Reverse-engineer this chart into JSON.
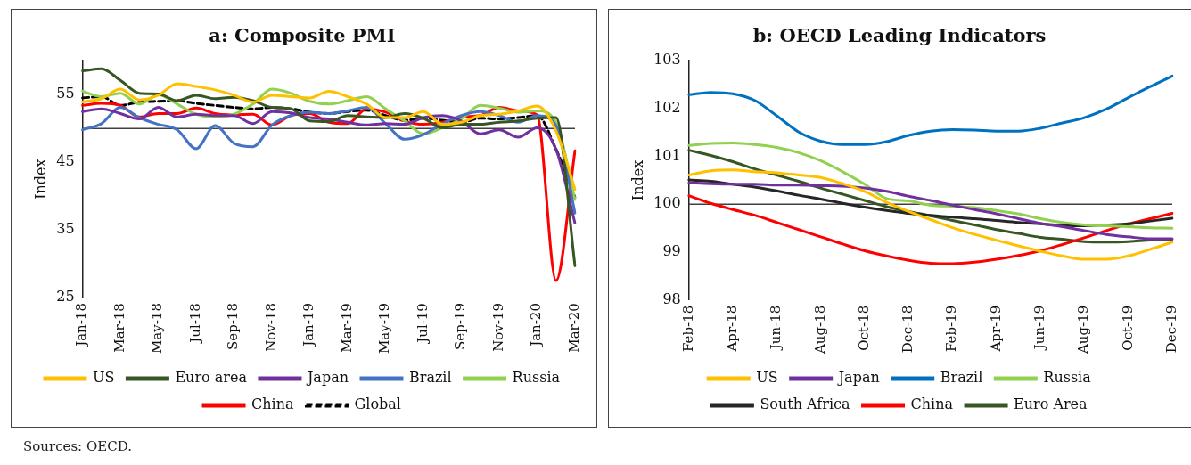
{
  "chart_data": [
    {
      "type": "line",
      "title": "a: Composite PMI",
      "ylabel": "Index",
      "categories": [
        "Jan-18",
        null,
        "Mar-18",
        null,
        "May-18",
        null,
        "Jul-18",
        null,
        "Sep-18",
        null,
        "Nov-18",
        null,
        "Jan-19",
        null,
        "Mar-19",
        null,
        "May-19",
        null,
        "Jul-19",
        null,
        "Sep-19",
        null,
        "Nov-19",
        null,
        "Jan-20",
        null,
        "Mar-20"
      ],
      "ylim": [
        25,
        60
      ],
      "yticks": [
        25,
        35,
        45,
        55
      ],
      "grid": false,
      "legend": "bottom",
      "marker": "none",
      "ref_lines": [
        {
          "axis": "y",
          "value": 50,
          "color": "#404040"
        }
      ],
      "series": [
        {
          "name": "US",
          "color": "#ffc000",
          "values": [
            53.9,
            54.4,
            55.8,
            54.2,
            54.9,
            56.6,
            56.2,
            55.7,
            54.9,
            53.9,
            54.9,
            54.7,
            54.5,
            55.5,
            54.7,
            53.6,
            51.6,
            51.6,
            52.5,
            50.6,
            50.9,
            51.9,
            52.1,
            52.6,
            53.3,
            49.6,
            41.0
          ]
        },
        {
          "name": "Euro area",
          "color": "#375623",
          "values": [
            58.5,
            58.8,
            57.1,
            55.2,
            55.1,
            54.1,
            54.9,
            54.4,
            54.6,
            54.1,
            53.1,
            52.9,
            51.1,
            51.0,
            51.9,
            51.7,
            51.6,
            52.2,
            51.5,
            50.1,
            50.6,
            50.6,
            50.9,
            51.1,
            51.5,
            51.6,
            29.7
          ]
        },
        {
          "name": "Japan",
          "color": "#7030a0",
          "values": [
            52.5,
            52.9,
            52.2,
            51.4,
            53.1,
            51.7,
            52.1,
            51.9,
            51.9,
            50.7,
            52.5,
            52.3,
            51.6,
            51.4,
            50.9,
            50.5,
            50.7,
            50.6,
            51.6,
            51.9,
            51.1,
            49.2,
            49.8,
            48.7,
            50.1,
            46.9,
            36.0
          ]
        },
        {
          "name": "Brazil",
          "color": "#4472c4",
          "values": [
            49.8,
            50.7,
            53.1,
            51.6,
            50.6,
            49.8,
            47.0,
            50.4,
            47.8,
            47.3,
            50.5,
            51.9,
            52.4,
            52.2,
            52.6,
            53.1,
            50.7,
            48.4,
            49.1,
            50.7,
            51.9,
            52.5,
            51.9,
            50.9,
            51.9,
            50.4,
            37.5
          ]
        },
        {
          "name": "Russia",
          "color": "#92d050",
          "values": [
            55.5,
            54.7,
            55.2,
            53.6,
            55.0,
            53.6,
            52.1,
            51.7,
            52.1,
            53.6,
            55.8,
            55.2,
            54.0,
            53.6,
            54.1,
            54.7,
            52.9,
            51.1,
            49.2,
            50.1,
            51.4,
            53.4,
            53.0,
            52.4,
            52.6,
            50.9,
            39.5
          ]
        },
        {
          "name": "China",
          "color": "#ff0000",
          "values": [
            53.4,
            53.7,
            53.4,
            51.7,
            52.2,
            52.2,
            53.0,
            52.2,
            52.0,
            52.1,
            50.5,
            51.9,
            52.2,
            50.9,
            50.7,
            52.9,
            52.4,
            51.1,
            50.6,
            50.9,
            51.7,
            51.9,
            53.1,
            52.6,
            52.0,
            27.5,
            46.7
          ]
        },
        {
          "name": "Global",
          "color": "#000000",
          "line_style": "dashed",
          "values": [
            54.5,
            54.7,
            53.4,
            53.9,
            54.0,
            54.1,
            53.7,
            53.4,
            53.1,
            52.9,
            53.1,
            52.9,
            52.4,
            52.2,
            52.5,
            52.7,
            51.9,
            51.2,
            51.5,
            51.2,
            50.9,
            51.5,
            51.4,
            51.6,
            51.9,
            46.9,
            39.8
          ]
        }
      ],
      "annotations": [
        "Sources: OECD."
      ]
    },
    {
      "type": "line",
      "title": "b: OECD Leading Indicators",
      "ylabel": "Index",
      "categories": [
        "Feb-18",
        null,
        "Apr-18",
        null,
        "Jun-18",
        null,
        "Aug-18",
        null,
        "Oct-18",
        null,
        "Dec-18",
        null,
        "Feb-19",
        null,
        "Apr-19",
        null,
        "Jun-19",
        null,
        "Aug-19",
        null,
        "Oct-19",
        null,
        "Dec-19"
      ],
      "ylim": [
        98,
        103
      ],
      "yticks": [
        98,
        99,
        100,
        101,
        102,
        103
      ],
      "grid": false,
      "legend": "bottom",
      "marker": "none",
      "ref_lines": [
        {
          "axis": "y",
          "value": 100,
          "color": "#404040"
        }
      ],
      "series": [
        {
          "name": "US",
          "color": "#ffc000",
          "values": [
            100.61,
            100.7,
            100.72,
            100.68,
            100.66,
            100.61,
            100.56,
            100.43,
            100.27,
            100.04,
            99.85,
            99.68,
            99.51,
            99.37,
            99.25,
            99.13,
            99.02,
            98.92,
            98.85,
            98.85,
            98.92,
            99.06,
            99.21
          ]
        },
        {
          "name": "Japan",
          "color": "#7030a0",
          "values": [
            100.45,
            100.43,
            100.42,
            100.42,
            100.4,
            100.4,
            100.39,
            100.38,
            100.34,
            100.27,
            100.17,
            100.08,
            99.98,
            99.89,
            99.8,
            99.7,
            99.6,
            99.53,
            99.45,
            99.37,
            99.32,
            99.28,
            99.28
          ]
        },
        {
          "name": "Brazil",
          "color": "#0070c0",
          "values": [
            102.29,
            102.34,
            102.31,
            102.17,
            101.85,
            101.51,
            101.32,
            101.25,
            101.25,
            101.31,
            101.44,
            101.53,
            101.56,
            101.55,
            101.53,
            101.53,
            101.59,
            101.7,
            101.81,
            101.99,
            102.23,
            102.46,
            102.68
          ]
        },
        {
          "name": "Russia",
          "color": "#92d050",
          "values": [
            101.23,
            101.27,
            101.28,
            101.25,
            101.19,
            101.08,
            100.91,
            100.68,
            100.42,
            100.12,
            100.07,
            99.98,
            99.96,
            99.93,
            99.87,
            99.8,
            99.7,
            99.62,
            99.57,
            99.55,
            99.53,
            99.51,
            99.5
          ]
        },
        {
          "name": "South Africa",
          "color": "#262626",
          "values": [
            100.51,
            100.48,
            100.42,
            100.36,
            100.28,
            100.19,
            100.11,
            100.02,
            99.94,
            99.87,
            99.81,
            99.77,
            99.73,
            99.7,
            99.66,
            99.62,
            99.59,
            99.56,
            99.55,
            99.57,
            99.59,
            99.65,
            99.71
          ]
        },
        {
          "name": "China",
          "color": "#ff0000",
          "values": [
            100.18,
            100.02,
            99.89,
            99.77,
            99.62,
            99.47,
            99.32,
            99.17,
            99.03,
            98.92,
            98.83,
            98.77,
            98.76,
            98.79,
            98.85,
            98.93,
            99.03,
            99.16,
            99.3,
            99.45,
            99.59,
            99.7,
            99.81
          ]
        },
        {
          "name": "Euro Area",
          "color": "#375623",
          "values": [
            101.13,
            101.02,
            100.89,
            100.74,
            100.61,
            100.48,
            100.34,
            100.21,
            100.08,
            99.95,
            99.85,
            99.76,
            99.66,
            99.57,
            99.47,
            99.39,
            99.31,
            99.27,
            99.22,
            99.21,
            99.22,
            99.25,
            99.27
          ]
        }
      ]
    }
  ]
}
